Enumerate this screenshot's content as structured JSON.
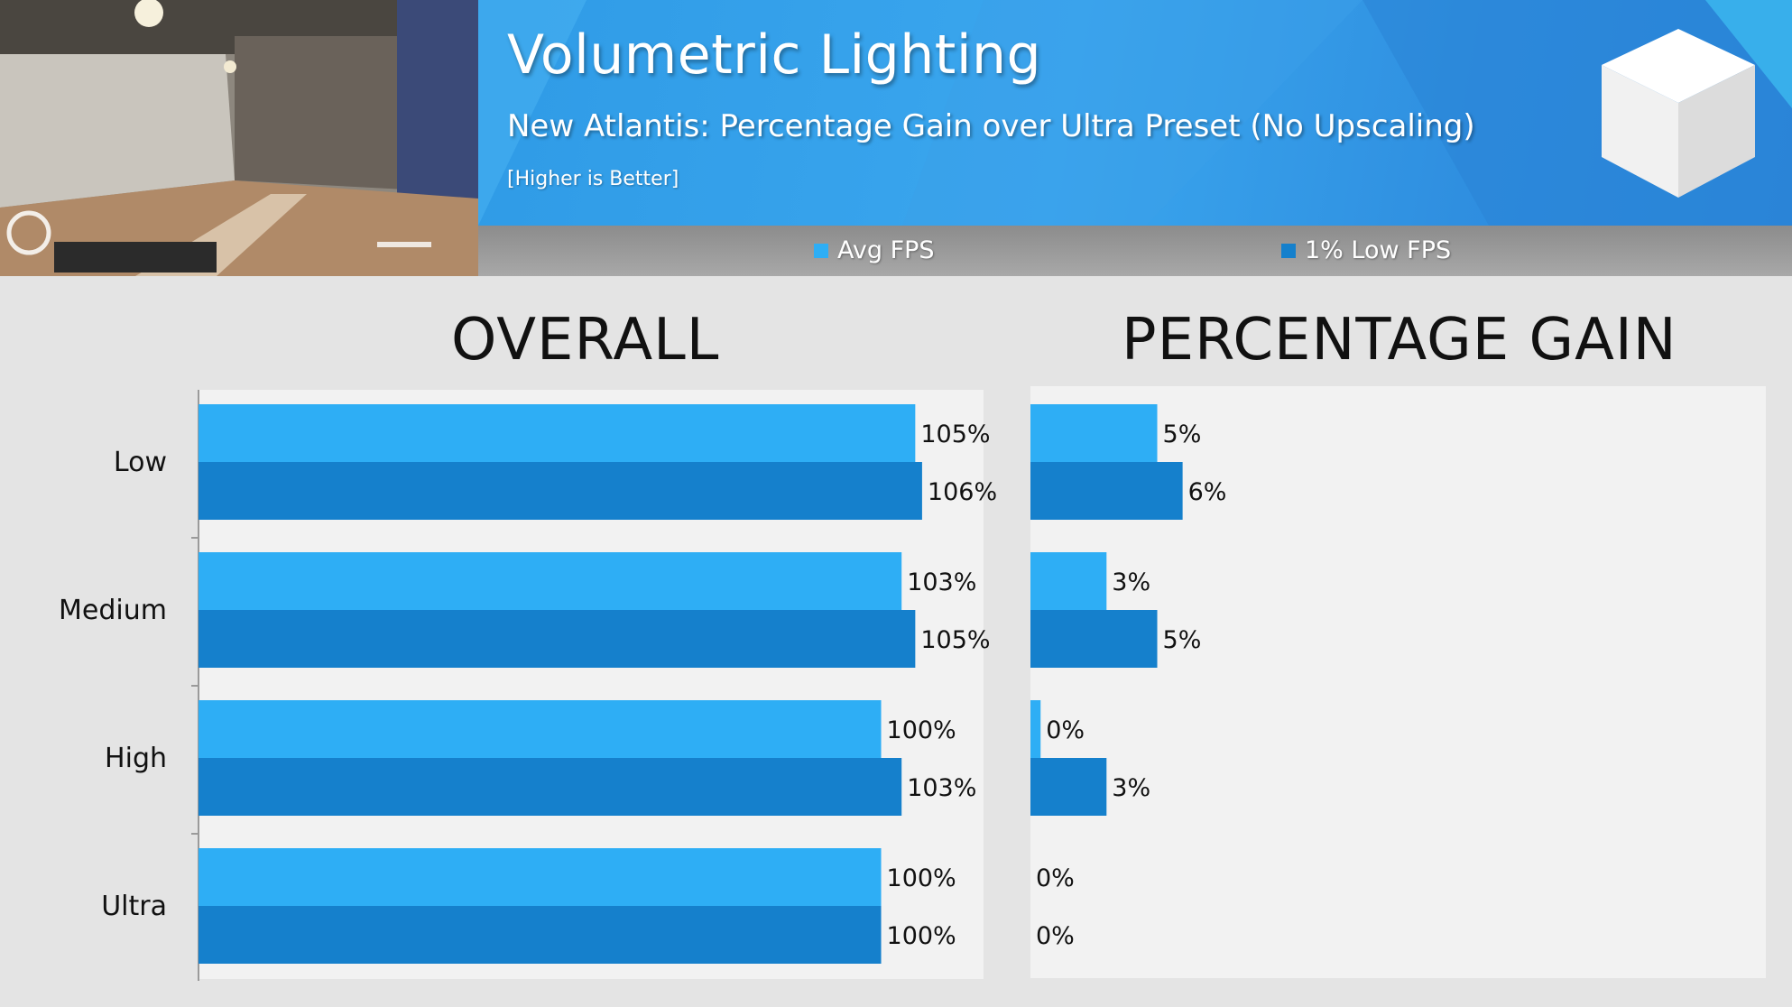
{
  "header": {
    "title": "Volumetric Lighting",
    "subtitle": "New Atlantis: Percentage Gain over Ultra Preset (No Upscaling)",
    "note": "[Higher is Better]"
  },
  "legend": [
    {
      "label": "Avg FPS",
      "color": "#2eaef5"
    },
    {
      "label": "1% Low FPS",
      "color": "#1580cc"
    }
  ],
  "colors": {
    "avg": "#2eaef5",
    "low": "#1580cc",
    "panel_bg": "#f2f2f2",
    "page_bg": "#e4e4e4"
  },
  "chart_data": [
    {
      "type": "bar",
      "orientation": "horizontal",
      "title": "OVERALL",
      "categories": [
        "Low",
        "Medium",
        "High",
        "Ultra"
      ],
      "series": [
        {
          "name": "Avg FPS",
          "values": [
            105,
            103,
            100,
            100
          ]
        },
        {
          "name": "1% Low FPS",
          "values": [
            106,
            105,
            103,
            100
          ]
        }
      ],
      "labels": [
        [
          "105%",
          "103%",
          "100%",
          "100%"
        ],
        [
          "106%",
          "105%",
          "103%",
          "100%"
        ]
      ],
      "xlim": [
        0,
        115
      ]
    },
    {
      "type": "bar",
      "orientation": "horizontal",
      "title": "PERCENTAGE GAIN",
      "categories": [
        "Low",
        "Medium",
        "High",
        "Ultra"
      ],
      "series": [
        {
          "name": "Avg FPS",
          "values": [
            5,
            3,
            0.4,
            0
          ]
        },
        {
          "name": "1% Low FPS",
          "values": [
            6,
            5,
            3,
            0
          ]
        }
      ],
      "labels": [
        [
          "5%",
          "3%",
          "0%",
          "0%"
        ],
        [
          "6%",
          "5%",
          "3%",
          "0%"
        ]
      ],
      "xlim": [
        0,
        29
      ]
    }
  ]
}
